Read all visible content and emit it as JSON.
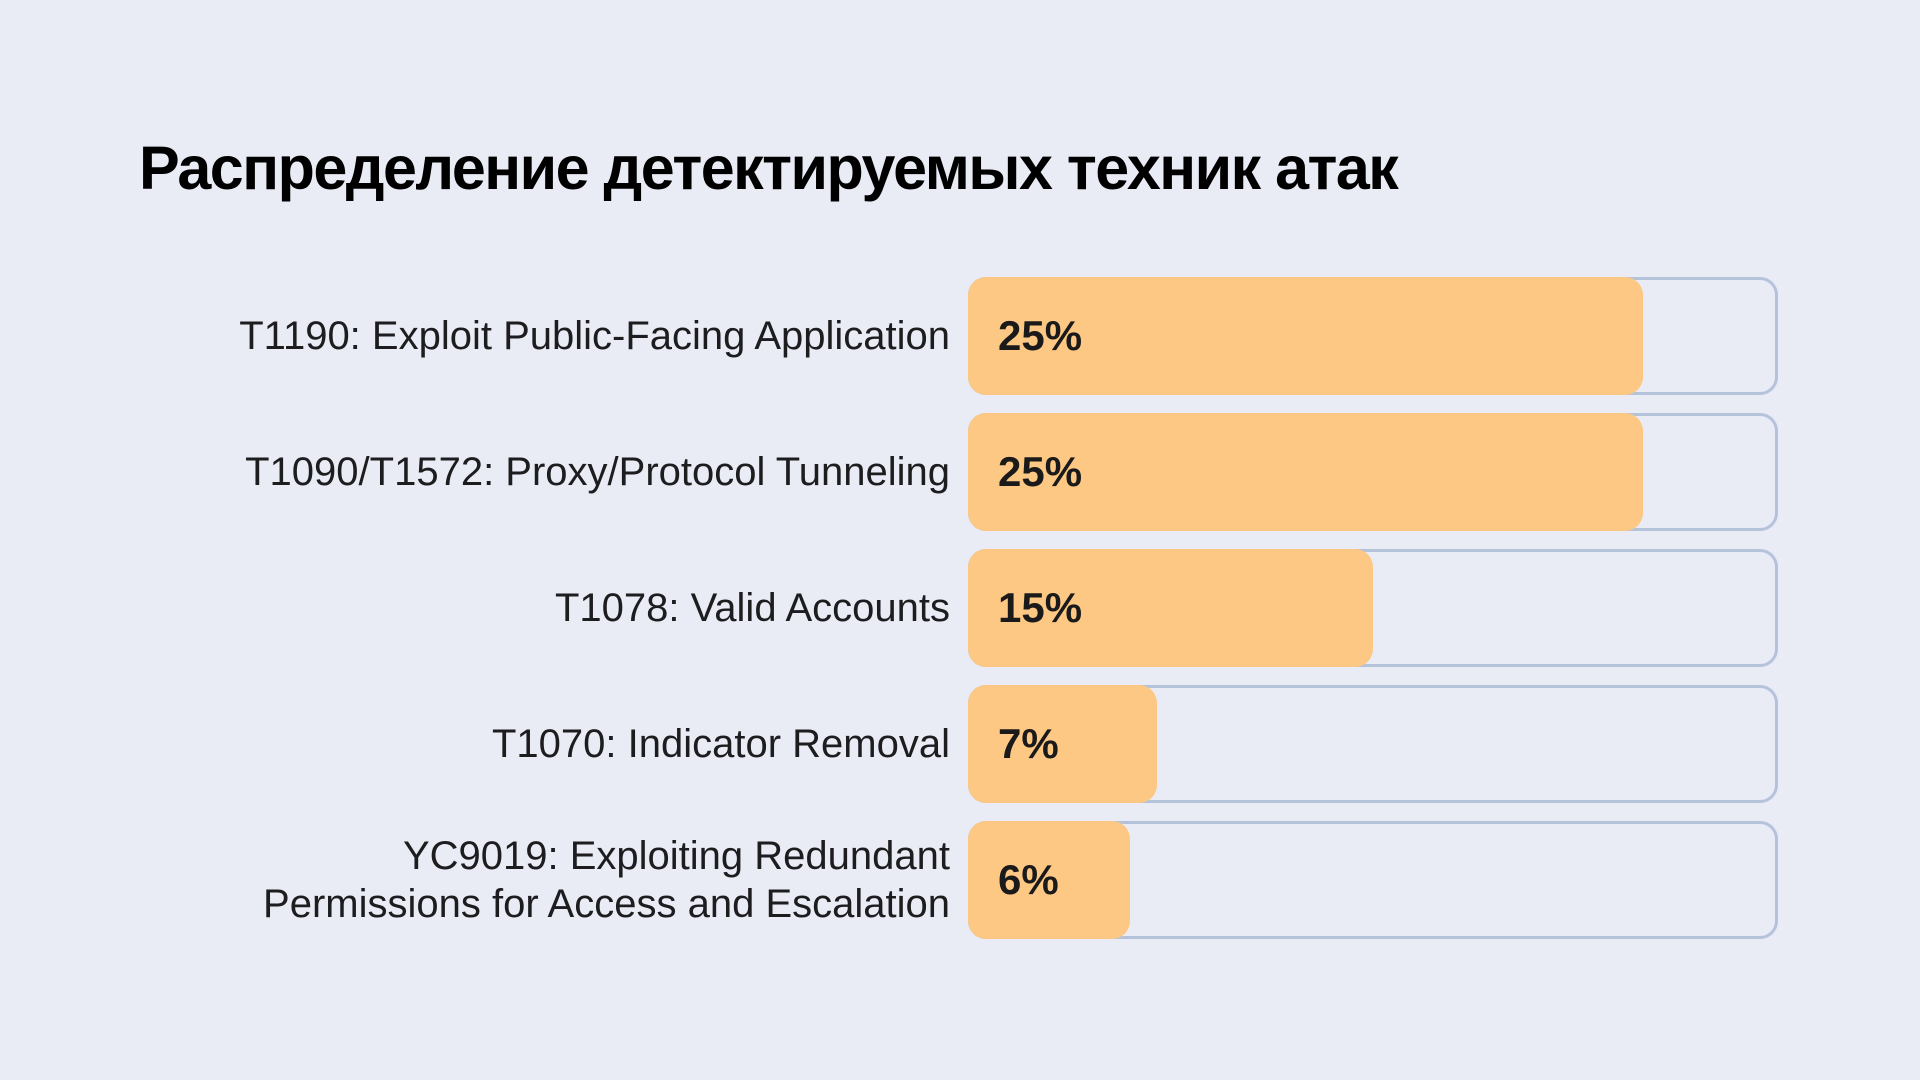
{
  "chart_data": {
    "type": "bar",
    "orientation": "horizontal",
    "title": "Распределение детектируемых техник атак",
    "categories": [
      "T1190: Exploit Public-Facing Application",
      "T1090/T1572: Proxy/Protocol Tunneling",
      "T1078: Valid Accounts",
      "T1070: Indicator Removal",
      "YC9019: Exploiting Redundant\nPermissions for Access and Escalation"
    ],
    "values": [
      25,
      25,
      15,
      7,
      6
    ],
    "value_labels": [
      "25%",
      "25%",
      "15%",
      "7%",
      "6%"
    ],
    "xlim": [
      0,
      30
    ],
    "xlabel": "",
    "ylabel": "",
    "grid": false,
    "legend": "none",
    "colors": {
      "bar": "#fdc784",
      "track_border": "#b4c3da",
      "background": "#e9ebf5"
    }
  }
}
